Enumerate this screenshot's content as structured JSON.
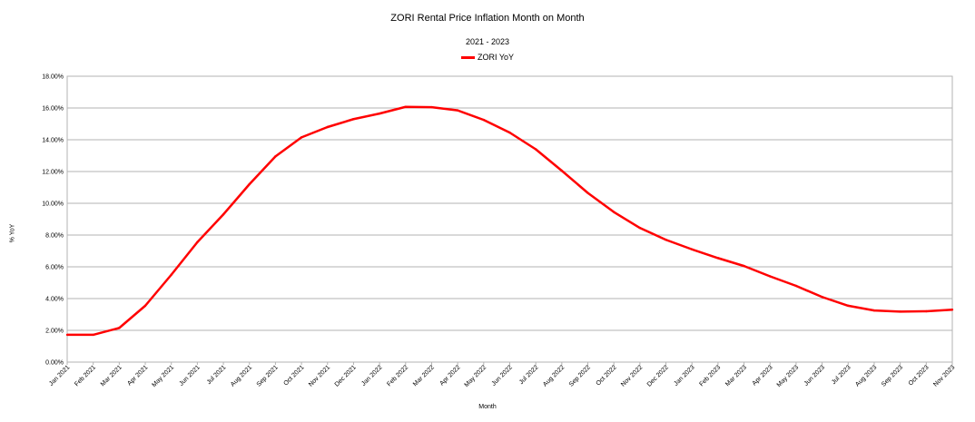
{
  "chart_data": {
    "type": "line",
    "title": "ZORI Rental Price Inflation Month on Month",
    "subtitle": "2021 - 2023",
    "xlabel": "Month",
    "ylabel": "% YoY",
    "ylim": [
      0,
      18
    ],
    "yticks": [
      "0.00%",
      "2.00%",
      "4.00%",
      "6.00%",
      "8.00%",
      "10.00%",
      "12.00%",
      "14.00%",
      "16.00%",
      "18.00%"
    ],
    "grid": "horizontal",
    "legend": "top-center",
    "categories": [
      "Jan 2021",
      "Feb 2021",
      "Mar 2021",
      "Apr 2021",
      "May 2021",
      "Jun 2021",
      "Jul 2021",
      "Aug 2021",
      "Sep 2021",
      "Oct 2021",
      "Nov 2021",
      "Dec 2021",
      "Jan 2022",
      "Feb 2022",
      "Mar 2022",
      "Apr 2022",
      "May 2022",
      "Jun 2022",
      "Jul 2022",
      "Aug 2022",
      "Sep 2022",
      "Oct 2022",
      "Nov 2022",
      "Dec 2022",
      "Jan 2023",
      "Feb 2023",
      "Mar 2023",
      "Apr 2023",
      "May 2023",
      "Jun 2023",
      "Jul 2023",
      "Aug 2023",
      "Sep 2023",
      "Oct 2023",
      "Nov 2023"
    ],
    "series": [
      {
        "name": "ZORI YoY",
        "color": "#ff0000",
        "values": [
          1.72,
          1.72,
          2.15,
          3.55,
          5.5,
          7.55,
          9.3,
          11.2,
          12.95,
          14.15,
          14.8,
          15.3,
          15.65,
          16.07,
          16.05,
          15.85,
          15.25,
          14.45,
          13.4,
          12.05,
          10.65,
          9.45,
          8.45,
          7.7,
          7.1,
          6.55,
          6.05,
          5.4,
          4.8,
          4.1,
          3.55,
          3.25,
          3.18,
          3.2,
          3.3
        ]
      }
    ]
  }
}
